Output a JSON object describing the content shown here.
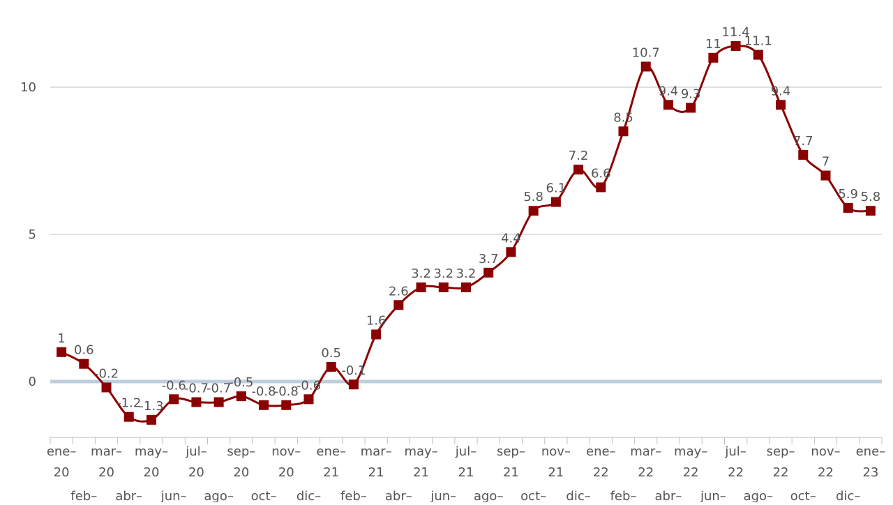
{
  "chart_data": {
    "type": "line",
    "title": "",
    "xlabel": "",
    "ylabel": "",
    "ylim": [
      -1.9,
      12.5
    ],
    "y_ticks": [
      0,
      5,
      10
    ],
    "grid": true,
    "categories": [
      "ene-20",
      "feb-20",
      "mar-20",
      "abr-20",
      "may-20",
      "jun-20",
      "jul-20",
      "ago-20",
      "sep-20",
      "oct-20",
      "nov-20",
      "dic-20",
      "ene-21",
      "feb-21",
      "mar-21",
      "abr-21",
      "may-21",
      "jun-21",
      "jul-21",
      "ago-21",
      "sep-21",
      "oct-21",
      "nov-21",
      "dic-21",
      "ene-22",
      "feb-22",
      "mar-22",
      "abr-22",
      "may-22",
      "jun-22",
      "jul-22",
      "ago-22",
      "sep-22",
      "oct-22",
      "nov-22",
      "dic-22",
      "ene-23"
    ],
    "series": [
      {
        "values": [
          1,
          0.6,
          -0.2,
          -1.2,
          -1.3,
          -0.6,
          -0.7,
          -0.7,
          -0.5,
          -0.8,
          -0.8,
          -0.6,
          0.5,
          -0.1,
          1.6,
          2.6,
          3.2,
          3.2,
          3.2,
          3.7,
          4.4,
          5.8,
          6.1,
          7.2,
          6.6,
          8.5,
          10.7,
          9.4,
          9.3,
          11,
          11.4,
          11.1,
          9.4,
          7.7,
          7,
          5.9,
          5.8
        ],
        "labels": [
          "1",
          "0.6",
          "-0.2",
          "-1.2",
          "-1.3",
          "-0.6",
          "-0.7",
          "-0.7",
          "-0.5",
          "-0.8",
          "-0.8",
          "-0.6",
          "0.5",
          "-0.1",
          "1.6",
          "2.6",
          "3.2",
          "3.2",
          "3.2",
          "3.7",
          "4.4",
          "5.8",
          "6.1",
          "7.2",
          "6.6",
          "8.5",
          "10.7",
          "9.4",
          "9.3",
          "11",
          "11.4",
          "11.1",
          "9.4",
          "7.7",
          "7",
          "5.9",
          "5.8"
        ],
        "color": "#8b0000"
      }
    ],
    "gridline_color": "#c0c0c0",
    "zero_line_color": "#c0cedc"
  }
}
